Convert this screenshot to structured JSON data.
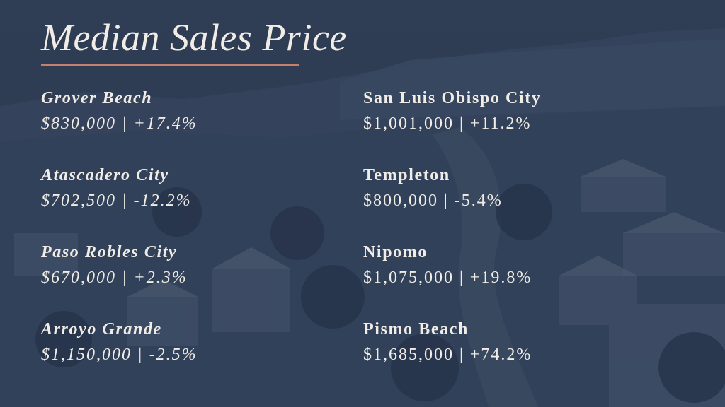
{
  "title": "Median Sales Price",
  "left_column": [
    {
      "name": "Grover Beach",
      "value": "$830,000 | +17.4%"
    },
    {
      "name": "Atascadero City",
      "value": "$702,500 | -12.2%"
    },
    {
      "name": "Paso Robles City",
      "value": "$670,000 | +2.3%"
    },
    {
      "name": "Arroyo Grande",
      "value": "$1,150,000 | -2.5%"
    }
  ],
  "right_column": [
    {
      "name": "San Luis Obispo City",
      "value": "$1,001,000 | +11.2%"
    },
    {
      "name": "Templeton",
      "value": "$800,000 | -5.4%"
    },
    {
      "name": "Nipomo",
      "value": "$1,075,000 | +19.8%"
    },
    {
      "name": "Pismo Beach",
      "value": "$1,685,000 | +74.2%"
    }
  ],
  "colors": {
    "background": "#2c3a52",
    "text": "#f1ede6",
    "accent": "#c4806b"
  }
}
